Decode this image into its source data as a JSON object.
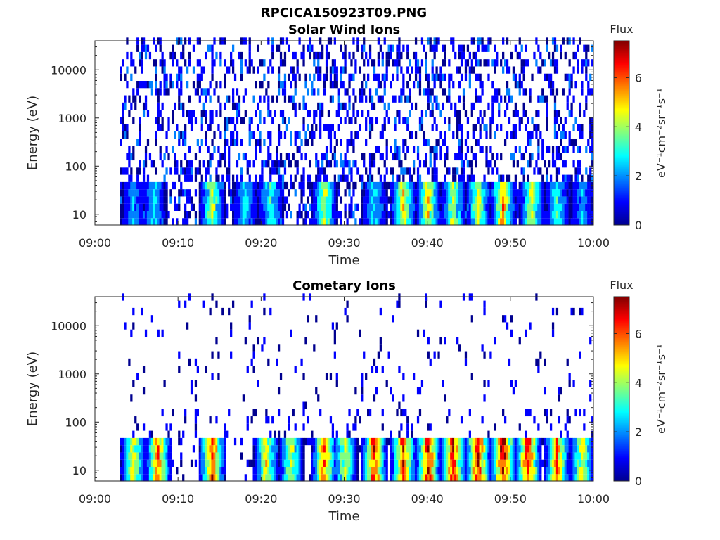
{
  "figure": {
    "title": "RPCICA150923T09.PNG"
  },
  "colormap": [
    "#00008f",
    "#0000ff",
    "#0080ff",
    "#00ffff",
    "#80ff80",
    "#ffff00",
    "#ff8000",
    "#ff0000",
    "#800000"
  ],
  "chart_data": [
    {
      "type": "heatmap",
      "title": "Solar Wind Ions",
      "xlabel": "Time",
      "ylabel": "Energy (eV)",
      "x_ticks": [
        "09:00",
        "09:10",
        "09:20",
        "09:30",
        "09:40",
        "09:50",
        "10:00"
      ],
      "y_ticks": [
        "10",
        "100",
        "1000",
        "10000"
      ],
      "y_scale": "log",
      "ylim": [
        6,
        40000
      ],
      "xlim": [
        "09:00",
        "10:00"
      ],
      "colorbar": {
        "label": "Flux",
        "unit": "eV⁻¹cm⁻²sr⁻¹s⁻¹",
        "ticks": [
          "0",
          "2",
          "4",
          "6"
        ],
        "range": [
          0,
          7.5
        ]
      },
      "data_start_min": 3,
      "low_energy_bursts_min": [
        4.5,
        7,
        14,
        18,
        21,
        27.5,
        33.5,
        37,
        40,
        43,
        46,
        49,
        52.5,
        55.5,
        58.5
      ],
      "burst_peak_flux": [
        2.5,
        3,
        4.5,
        3,
        3.5,
        4.5,
        3,
        5,
        5,
        4.5,
        4.5,
        5.5,
        4.5,
        3.5,
        2.5
      ]
    },
    {
      "type": "heatmap",
      "title": "Cometary Ions",
      "xlabel": "Time",
      "ylabel": "Energy (eV)",
      "x_ticks": [
        "09:00",
        "09:10",
        "09:20",
        "09:30",
        "09:40",
        "09:50",
        "10:00"
      ],
      "y_ticks": [
        "10",
        "100",
        "1000",
        "10000"
      ],
      "y_scale": "log",
      "ylim": [
        6,
        40000
      ],
      "xlim": [
        "09:00",
        "10:00"
      ],
      "colorbar": {
        "label": "Flux",
        "unit": "eV⁻¹cm⁻²sr⁻¹s⁻¹",
        "ticks": [
          "0",
          "2",
          "4",
          "6"
        ],
        "range": [
          0,
          7.5
        ]
      },
      "data_start_min": 3,
      "low_energy_bursts_min": [
        4.5,
        7.5,
        14,
        20.5,
        23.5,
        27.5,
        30,
        33.5,
        37,
        40,
        43,
        46,
        49,
        52,
        55.5,
        58.5
      ],
      "burst_peak_flux": [
        5,
        6,
        6.5,
        5,
        4.5,
        6,
        4.5,
        6.5,
        6.5,
        7,
        7,
        7,
        7.2,
        7,
        6,
        5
      ]
    }
  ]
}
